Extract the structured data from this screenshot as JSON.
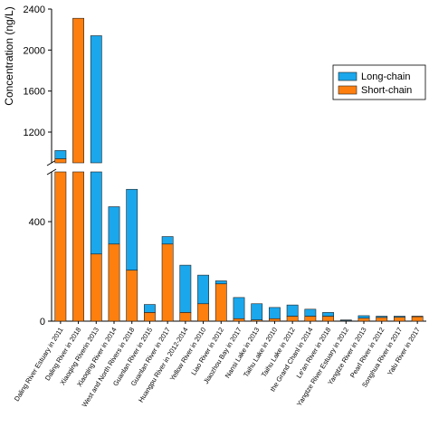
{
  "chart_data": {
    "type": "bar",
    "stacked": true,
    "broken_y_axis": true,
    "ylabel": "Concentration (ng/L)",
    "xlabel": "",
    "legend": {
      "placement": "top-right",
      "entries": [
        "Long-chain",
        "Short-chain"
      ]
    },
    "colors": {
      "Long-chain": "#1aa7ec",
      "Short-chain": "#ff7f0e"
    },
    "y_lower_range": [
      0,
      600
    ],
    "y_upper_range": [
      900,
      2400
    ],
    "y_lower_ticks": [
      "0",
      "400"
    ],
    "y_upper_ticks": [
      "1200",
      "1600",
      "2000",
      "2400"
    ],
    "categories": [
      "Daling River Estuary in 2011",
      "Daling River in 2018",
      "Xiaoqing Riverin 2013",
      "Xiaoqing River in 2014",
      "West and North Rivers in 2018",
      "Guanlan River in 2015",
      "Guanlan River in 2017",
      "Huangpu River in 2012-2014",
      "Yellow River in 2010",
      "Liao River in 2012",
      "Jiaozhou Bay in 2017",
      "Nansi Lake in 2013",
      "Taihu Lake in 2010",
      "Taihu Lake in 2012",
      "the Grand Chanl in 2014",
      "Le'an River in 2018",
      "Yangtze River Estuary in 2012",
      "Yangtze River in 2013",
      "Pearl River in 2012",
      "Songhua River in 2017",
      "Yalu River in 2017"
    ],
    "series": [
      {
        "name": "Short-chain",
        "values": [
          940,
          2310,
          270,
          310,
          205,
          35,
          310,
          35,
          70,
          150,
          10,
          5,
          10,
          20,
          20,
          20,
          2,
          12,
          15,
          16,
          18
        ]
      },
      {
        "name": "Long-chain",
        "values": [
          80,
          0,
          1870,
          150,
          325,
          32,
          30,
          190,
          115,
          12,
          85,
          65,
          45,
          45,
          28,
          15,
          3,
          10,
          5,
          4,
          2
        ]
      }
    ]
  }
}
